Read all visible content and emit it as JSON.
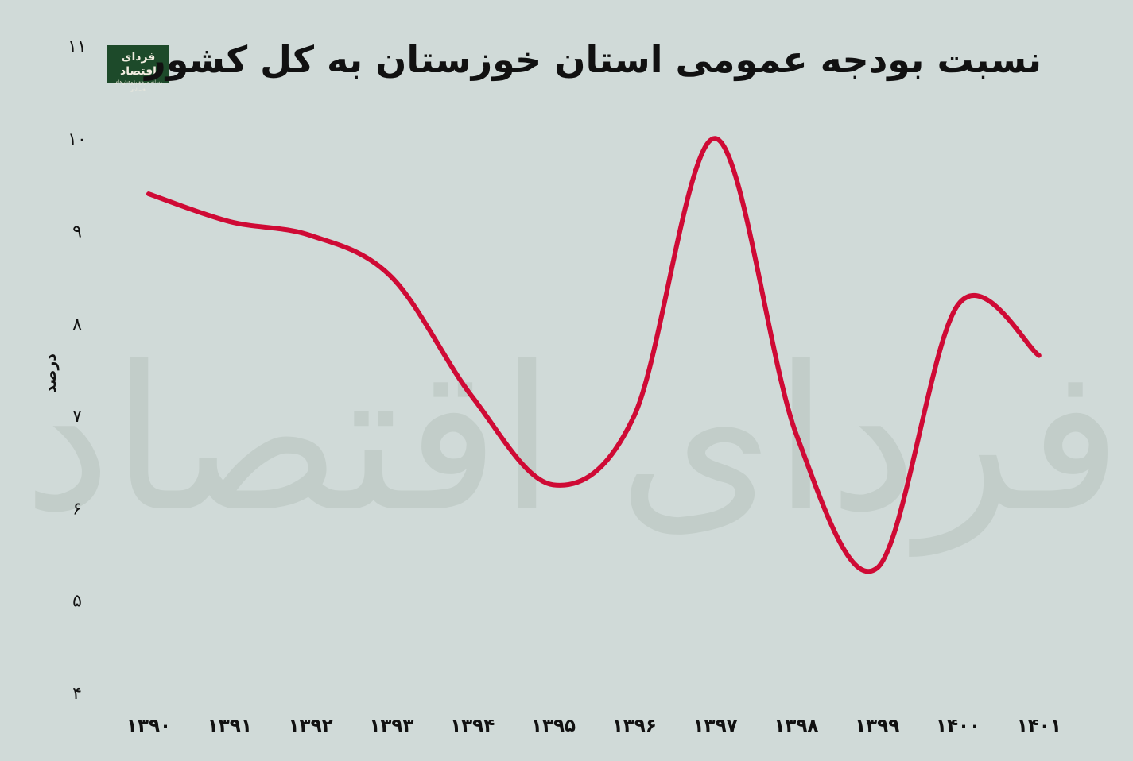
{
  "header": {
    "title": "نسبت بودجه عمومی استان خوزستان به کل کشور"
  },
  "logo": {
    "name": "فردای اقتصاد",
    "tagline": "رسانه مرجع پژوهش‌های اقتصادی"
  },
  "watermark": "فردای اقتصاد",
  "colors": {
    "background": "#d0dad8",
    "line": "#cf0a35",
    "logo_bg": "#1d4a2a"
  },
  "chart_data": {
    "type": "line",
    "title": "نسبت بودجه عمومی استان خوزستان به کل کشور",
    "xlabel": "",
    "ylabel": "درصد",
    "ylim": [
      4,
      11
    ],
    "y_ticks": [
      "۴",
      "۵",
      "۶",
      "۷",
      "۸",
      "۹",
      "۱۰",
      "۱۱"
    ],
    "y_tick_values": [
      4,
      5,
      6,
      7,
      8,
      9,
      10,
      11
    ],
    "categories": [
      "۱۳۹۰",
      "۱۳۹۱",
      "۱۳۹۲",
      "۱۳۹۳",
      "۱۳۹۴",
      "۱۳۹۵",
      "۱۳۹۶",
      "۱۳۹۷",
      "۱۳۹۸",
      "۱۳۹۹",
      "۱۴۰۰",
      "۱۴۰۱"
    ],
    "series": [
      {
        "values": [
          9.4,
          9.1,
          8.95,
          8.5,
          7.2,
          6.25,
          7.0,
          10.0,
          6.8,
          5.35,
          8.2,
          7.65
        ],
        "color": "#cf0a35",
        "smooth": true
      }
    ],
    "grid": false,
    "legend": "none"
  }
}
